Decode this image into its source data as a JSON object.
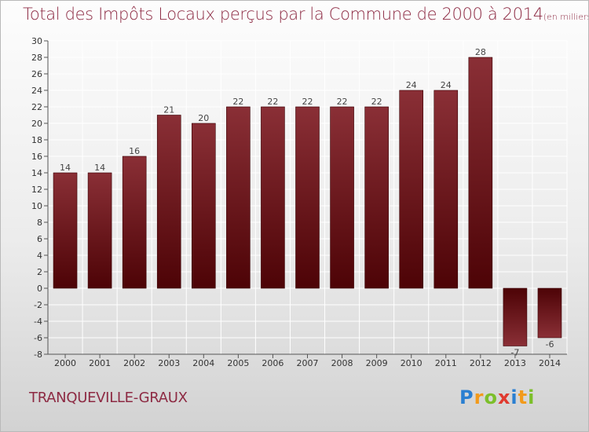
{
  "header": {
    "title": "Total des Impôts Locaux perçus par la Commune de 2000 à 2014",
    "unit": "(en milliers d'€)"
  },
  "footer": {
    "commune": "TRANQUEVILLE-GRAUX",
    "brand": "Proxiti",
    "brand_letters": [
      {
        "char": "P",
        "color": "#2a7fd1"
      },
      {
        "char": "r",
        "color": "#f29a1b"
      },
      {
        "char": "o",
        "color": "#7cbf2a"
      },
      {
        "char": "x",
        "color": "#e03a2f"
      },
      {
        "char": "i",
        "color": "#2a7fd1"
      },
      {
        "char": "t",
        "color": "#f29a1b"
      },
      {
        "char": "i",
        "color": "#7cbf2a"
      }
    ]
  },
  "colors": {
    "bar_top": "#8a2f36",
    "bar_bottom": "#4d0306",
    "title": "#8d2a43"
  },
  "chart_data": {
    "type": "bar",
    "title": "Total des Impôts Locaux perçus par la Commune de 2000 à 2014",
    "ylabel": "en milliers d'€",
    "xlabel": "",
    "categories": [
      "2000",
      "2001",
      "2002",
      "2003",
      "2004",
      "2005",
      "2006",
      "2007",
      "2008",
      "2009",
      "2010",
      "2011",
      "2012",
      "2013",
      "2014"
    ],
    "values": [
      14,
      14,
      16,
      21,
      20,
      22,
      22,
      22,
      22,
      22,
      24,
      24,
      28,
      -7,
      -6
    ],
    "ylim": [
      -8,
      30
    ],
    "yticks": [
      -8,
      -6,
      -4,
      -2,
      0,
      2,
      4,
      6,
      8,
      10,
      12,
      14,
      16,
      18,
      20,
      22,
      24,
      26,
      28,
      30
    ],
    "grid": true,
    "legend": "none"
  }
}
